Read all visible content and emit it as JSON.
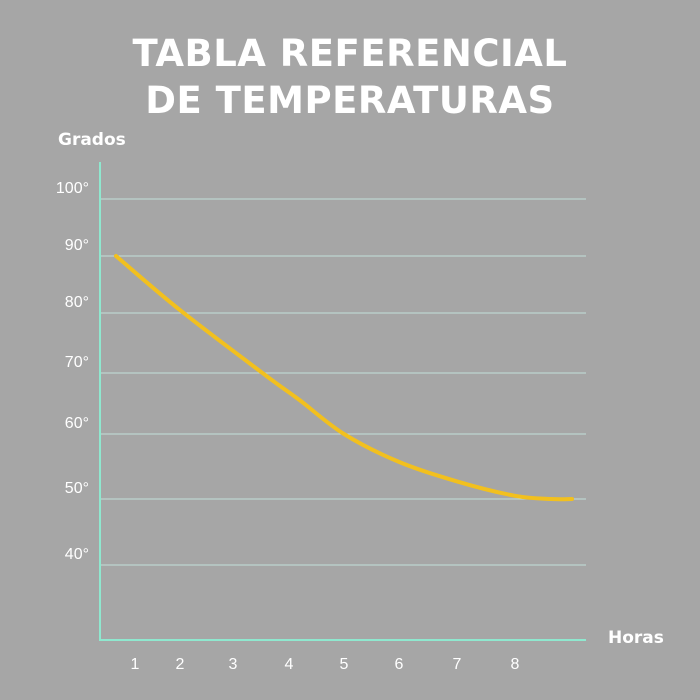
{
  "chart_data": {
    "type": "line",
    "title": [
      "TABLA REFERENCIAL",
      "DE TEMPERATURAS"
    ],
    "ylabel": "Grados",
    "xlabel": "Horas",
    "y_ticks": [
      {
        "value": 100,
        "label": "100°"
      },
      {
        "value": 90,
        "label": "90°"
      },
      {
        "value": 80,
        "label": "80°"
      },
      {
        "value": 70,
        "label": "70°"
      },
      {
        "value": 60,
        "label": "60°"
      },
      {
        "value": 50,
        "label": "50°"
      },
      {
        "value": 40,
        "label": "40°"
      }
    ],
    "x_ticks": [
      {
        "value": 1,
        "label": "1"
      },
      {
        "value": 2,
        "label": "2"
      },
      {
        "value": 3,
        "label": "3"
      },
      {
        "value": 4,
        "label": "4"
      },
      {
        "value": 5,
        "label": "5"
      },
      {
        "value": 6,
        "label": "6"
      },
      {
        "value": 7,
        "label": "7"
      },
      {
        "value": 8,
        "label": "8"
      }
    ],
    "series": [
      {
        "x": [
          0.6,
          2.0,
          3.6,
          4.2,
          5.0,
          6.0,
          7.0,
          8.0,
          8.6,
          8.95
        ],
        "y": [
          90,
          80.5,
          69.5,
          65.5,
          60,
          55.7,
          52.7,
          50.5,
          50,
          50
        ]
      }
    ],
    "grid": true,
    "colors": {
      "background": "#a6a6a6",
      "line": "#f2c01e",
      "grid": "#c3e0da",
      "axis": "#8fe8cf",
      "text": "#ffffff"
    }
  }
}
